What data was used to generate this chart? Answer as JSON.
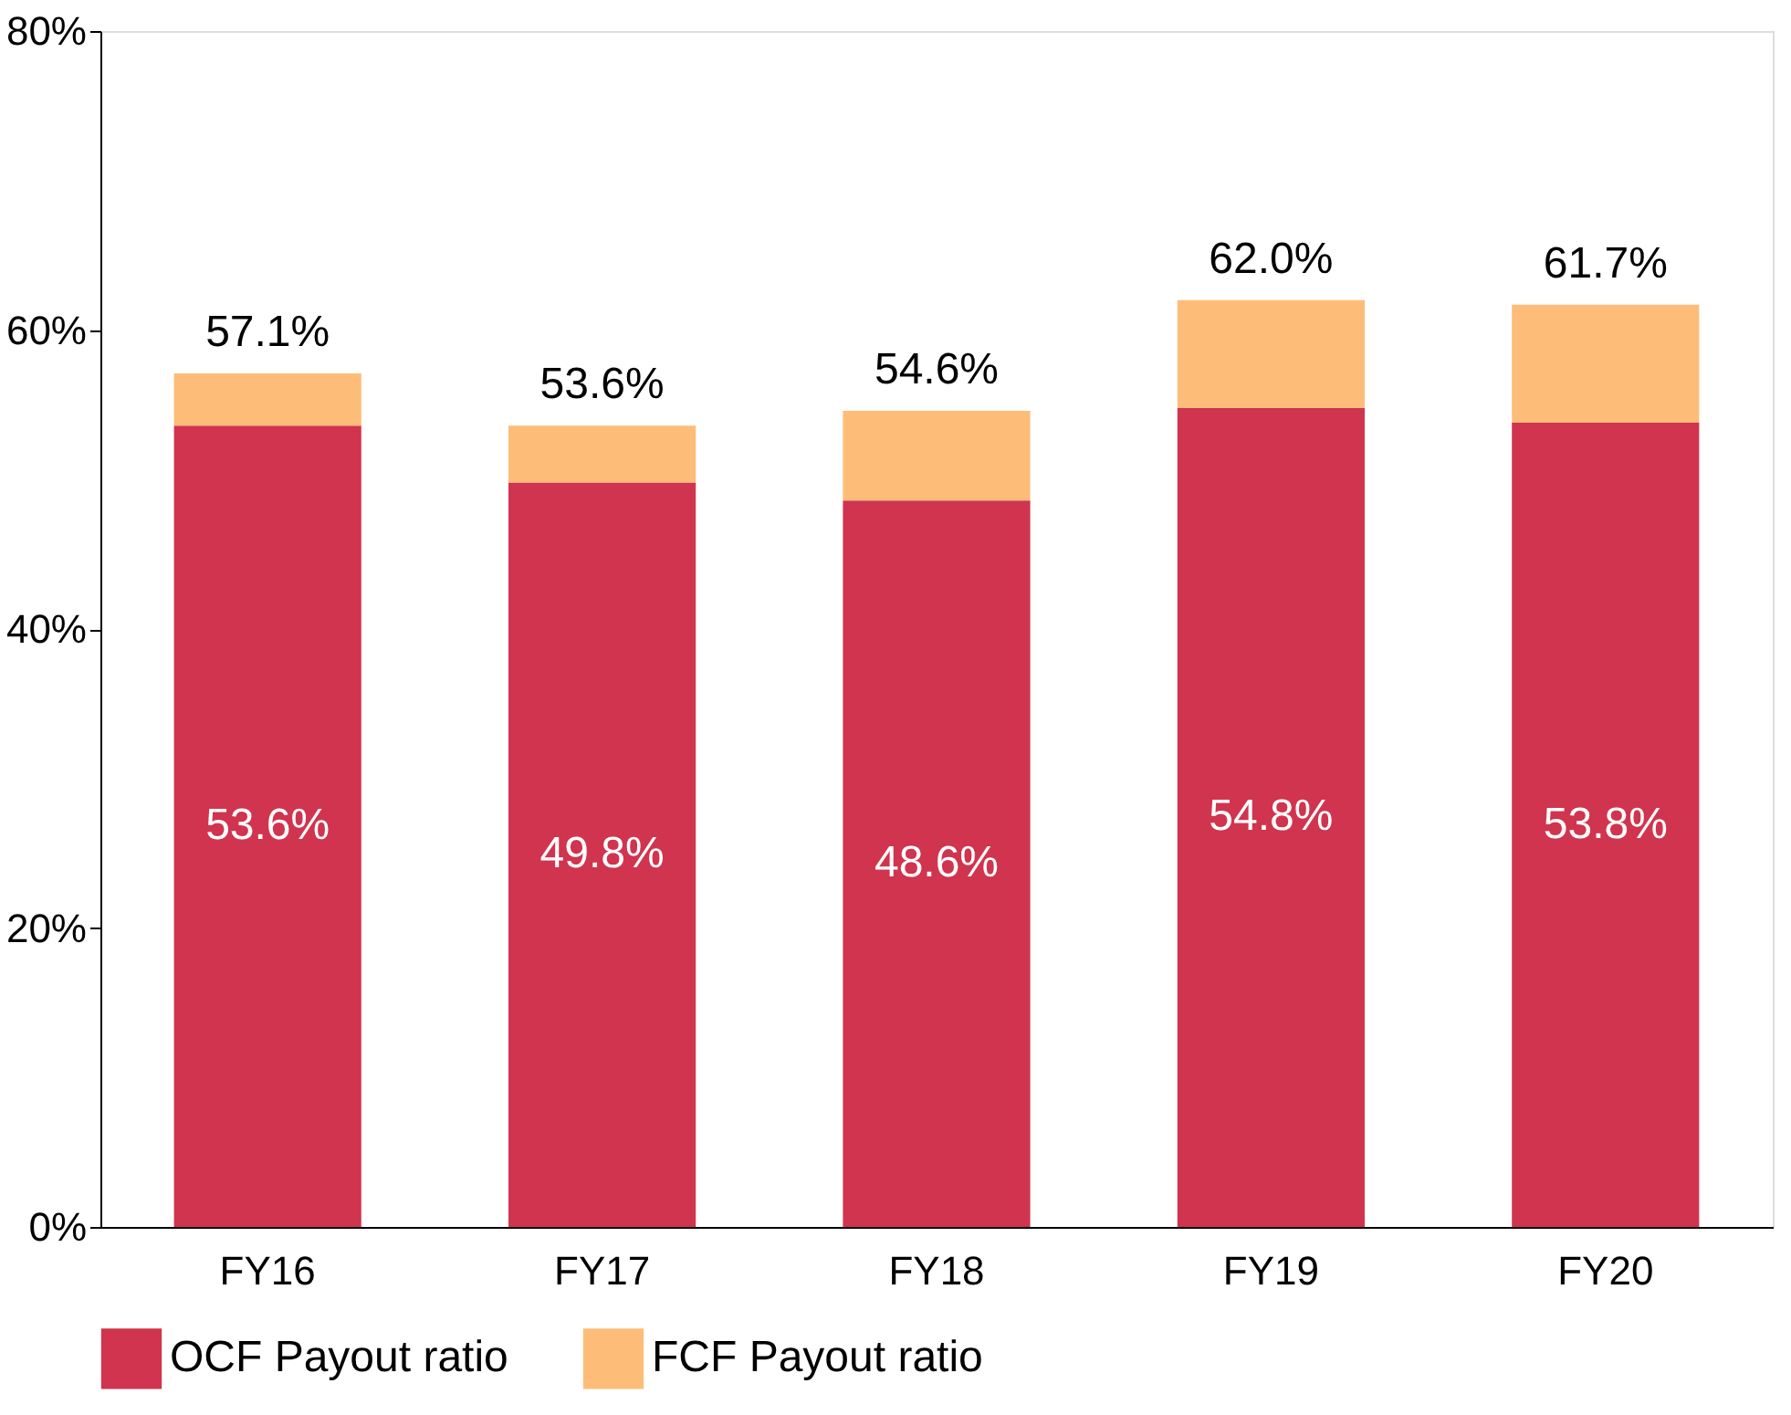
{
  "chart_data": {
    "type": "bar",
    "stacked": true,
    "categories": [
      "FY16",
      "FY17",
      "FY18",
      "FY19",
      "FY20"
    ],
    "series": [
      {
        "name": "OCF Payout ratio",
        "color": "#d0344e",
        "values": [
          53.6,
          49.8,
          48.6,
          54.8,
          53.8
        ],
        "value_labels": [
          "53.6%",
          "49.8%",
          "48.6%",
          "54.8%",
          "53.8%"
        ]
      },
      {
        "name": "FCF Payout ratio",
        "color": "#fdbd78",
        "values": [
          3.5,
          3.8,
          6.0,
          7.2,
          7.9
        ]
      }
    ],
    "totals": [
      "57.1%",
      "53.6%",
      "54.6%",
      "62.0%",
      "61.7%"
    ],
    "ylim": [
      0,
      80
    ],
    "yticks": [
      {
        "value": 0,
        "label": "0%"
      },
      {
        "value": 20,
        "label": "20%"
      },
      {
        "value": 40,
        "label": "40%"
      },
      {
        "value": 60,
        "label": "60%"
      },
      {
        "value": 80,
        "label": "80%"
      }
    ],
    "grid": false,
    "legend": "bottom"
  }
}
